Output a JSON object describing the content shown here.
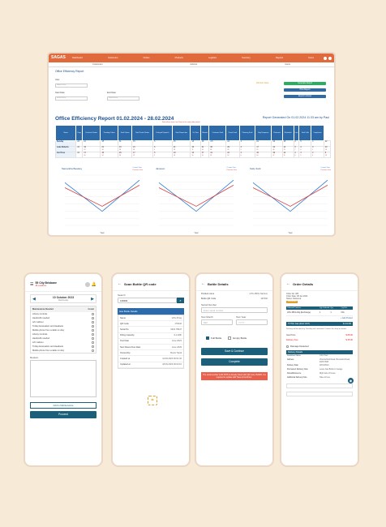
{
  "desktop": {
    "logo": "SAGAS",
    "nav": [
      "Dashboard",
      "Customers",
      "Orders",
      "Products",
      "Logistics",
      "Inventory",
      "Reports",
      "Users"
    ],
    "subnav": [
      "Customers",
      "Admins",
      "Users"
    ],
    "breadcrumb": "Office Efficiency Report",
    "filters": {
      "user_label": "User",
      "user_placeholder": "Select User",
      "start_label": "Start Date",
      "start_value": "01/02/2024",
      "end_label": "End Date",
      "end_value": "28/02/2024"
    },
    "actions": {
      "refresh": "Refresh Data",
      "generate": "Generate Report",
      "print": "Print Report",
      "export": "Export to Excel"
    },
    "report_title": "Office Efficiency Report  01.02.2024 - 28.02.2024",
    "report_generated": "Report Generated On 01.02.2024 11:33 am by Paul",
    "note": "Red values show Last Year for the same date period",
    "table": {
      "headers": [
        "Name",
        "Days",
        "Declined Orders",
        "Pending Orders",
        "Total Orders",
        "Total Partial Orders",
        "Delayed Dispatch",
        "Total Dispatches",
        "On Time",
        "Missed",
        "Customer Fault",
        "Driver Fault",
        "Planning Fault",
        "Avg Response",
        "Returned",
        "Refunded",
        "Lost",
        "Total Calls",
        "Complaints"
      ],
      "rows": [
        {
          "name": "Sunday",
          "days": "24",
          "cells": [
            "21",
            "15",
            "31",
            "15",
            "5",
            "15",
            "13",
            "18",
            "4.5",
            "24",
            "4",
            "21",
            "42",
            "15",
            "6",
            "5",
            "4",
            "12"
          ],
          "sub": [
            "",
            "",
            "",
            "",
            "",
            "",
            "",
            "",
            "",
            "",
            "",
            "",
            "",
            "",
            "",
            "",
            "",
            ""
          ]
        },
        {
          "name": "Luke Roberts",
          "days": "24",
          "cells": [
            "19",
            "21",
            "33",
            "21",
            "6",
            "21",
            "16",
            "21",
            "38",
            "29",
            "3",
            "17",
            "44",
            "14",
            "5",
            "4",
            "3",
            "10"
          ],
          "sub": [
            "23",
            "18",
            "28",
            "18",
            "4",
            "18",
            "11",
            "16",
            "36",
            "26",
            "5",
            "19",
            "40",
            "13",
            "7",
            "6",
            "5",
            "14"
          ]
        },
        {
          "name": "Carl Tess",
          "days": "24",
          "cells": [
            "17",
            "16",
            "29",
            "17",
            "5",
            "19",
            "12",
            "17",
            "41",
            "22",
            "4",
            "16",
            "39",
            "12",
            "4",
            "3",
            "2",
            "9"
          ],
          "sub": [
            "20",
            "14",
            "26",
            "15",
            "3",
            "16",
            "10",
            "15",
            "35",
            "25",
            "6",
            "18",
            "37",
            "11",
            "6",
            "5",
            "4",
            "13"
          ]
        }
      ]
    },
    "charts": [
      {
        "title": "Samantha Beasley",
        "legend": [
          "Current Year",
          "Previous Year"
        ],
        "xlabel": "Year"
      },
      {
        "title": "Janeson",
        "legend": [
          "Current Year",
          "Previous Year"
        ],
        "xlabel": "Year"
      },
      {
        "title": "Kelly dock",
        "legend": [
          "Current Year",
          "Previous Year"
        ],
        "xlabel": "Year"
      }
    ],
    "colors": {
      "accent": "#e06a3b",
      "primary": "#1d4f8a",
      "green": "#27ae60",
      "series_a": "#2b7bd6",
      "series_b": "#d64040"
    }
  },
  "phone1": {
    "location": "55 City Brisbane",
    "sublocation": "All Locations",
    "date": "10 October 2023",
    "day": "Wednesday",
    "table_header": [
      "Maintenance Needed",
      "Count"
    ],
    "items": [
      "Library Controls",
      "Handcuffs needed",
      "A/C cabinet",
      "Trolley Evacuation and Headsets",
      "Mobile phone from a table on duty",
      "Library Controls",
      "Handcuffs needed",
      "A/C cabinet",
      "Trolley Evacuation and Headsets",
      "Mobile phone from a table on duty"
    ],
    "reason_label": "Reason",
    "link_btn": "Add to Maintenance",
    "proceed": "Proceed"
  },
  "phone2": {
    "title": "Scan Bottle QR code",
    "search_label": "Search",
    "search_value": "138484",
    "section": "Gas Bottle Details",
    "rows": [
      [
        "Name",
        "LPG 45 kg"
      ],
      [
        "QR Code",
        "170032"
      ],
      [
        "Serial No",
        "3323 78947"
      ],
      [
        "Filling Capacity",
        "9.1 kWh"
      ],
      [
        "Test Date",
        "June 2024"
      ],
      [
        "Next Retest Due Date",
        "June 2029"
      ],
      [
        "Ownership",
        "Boots Tiaral"
      ],
      [
        "Created at",
        "12.09.2023 00:01:32"
      ],
      [
        "Updated at",
        "18.09.2023 00:02:10"
      ]
    ]
  },
  "phone3": {
    "title": "Bottle Details",
    "product_label": "Product name",
    "product_value": "LPG 45KG Natrium",
    "qr_label": "Bottle QR Code",
    "qr_value": "167002",
    "serial_label": "Serial Number",
    "serial_placeholder": "Enter serial number",
    "test_month_label": "Test Month",
    "test_year_label": "Test Year",
    "month_placeholder": "MM",
    "year_placeholder": "YYYY",
    "full": "Full Bottle",
    "empty": "Empty Bottle",
    "save": "Save & Continue",
    "complete": "Complete",
    "warning": "The serial number 1234 5678 is already linked with QR code 152935. It is required to update with 'Save & Continue'."
  },
  "phone4": {
    "title": "Order Details",
    "order_no": "Order No: 483",
    "placed": "Order Date: 08 Jan 2024",
    "status": "Status: Delivered",
    "badge": "Scheduled",
    "head": [
      "Ordered Products",
      "Qty Ordered",
      "Qty",
      "Qty Ret"
    ],
    "lines": [
      [
        "LPG 45KG 2kg (Exchange)",
        "1",
        "1",
        "N/A"
      ]
    ],
    "add_link": "+ Add Product",
    "summary_label": "TOTAL Gas (Excl GST)",
    "summary_value": "$ 123.00",
    "extra_note": "Delivery will be done by Tuesday and confirmed. Contact the shop for details.",
    "fees": [
      [
        "Gas Price",
        "$ 88.00"
      ],
      [
        "Delivery Fee",
        "$ 35.00"
      ]
    ],
    "damaged": "Damage Detected",
    "delivery_head": "Delivery Details",
    "dd": [
      [
        "Customer Name",
        "John Paul"
      ],
      [
        "Address",
        "Victoria Park Road, Brunswick Road, 2026 NSW"
      ],
      [
        "Delivery Date",
        "02/10/2023"
      ],
      [
        "Permanent Delivery Note",
        "Leave Gas Bottle in Garage"
      ],
      [
        "Notes/Reference",
        "Right side of house"
      ],
      [
        "Additional Delivery Note",
        "Take old one"
      ]
    ]
  }
}
